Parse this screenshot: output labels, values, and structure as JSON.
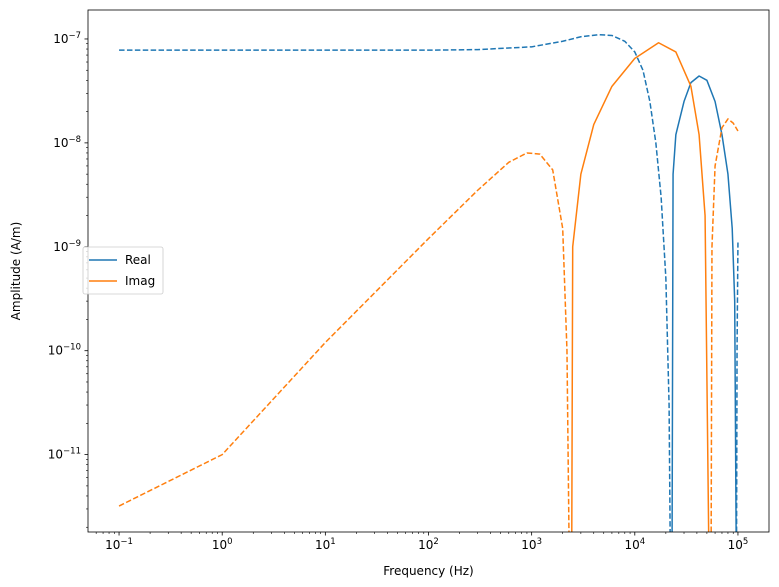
{
  "chart_data": {
    "type": "line",
    "title": "",
    "xlabel": "Frequency (Hz)",
    "ylabel": "Amplitude (A/m)",
    "xscale": "log",
    "yscale": "log",
    "xlim": [
      0.05,
      200000
    ],
    "ylim": [
      1.8e-12,
      1.9e-07
    ],
    "grid": false,
    "legend": {
      "placement": "center-left",
      "entries": [
        {
          "label": "Real",
          "color": "#1f77b4"
        },
        {
          "label": "Imag",
          "color": "#ff7f0e"
        }
      ]
    },
    "x_ticks": [
      {
        "value": 0.1,
        "base": "10",
        "exp": "−1"
      },
      {
        "value": 1,
        "base": "10",
        "exp": "0"
      },
      {
        "value": 10,
        "base": "10",
        "exp": "1"
      },
      {
        "value": 100,
        "base": "10",
        "exp": "2"
      },
      {
        "value": 1000,
        "base": "10",
        "exp": "3"
      },
      {
        "value": 10000,
        "base": "10",
        "exp": "4"
      },
      {
        "value": 100000,
        "base": "10",
        "exp": "5"
      }
    ],
    "y_ticks": [
      {
        "value": 1e-11,
        "base": "10",
        "exp": "−11"
      },
      {
        "value": 1e-10,
        "base": "10",
        "exp": "−10"
      },
      {
        "value": 1e-09,
        "base": "10",
        "exp": "−9"
      },
      {
        "value": 1e-08,
        "base": "10",
        "exp": "−8"
      },
      {
        "value": 1e-07,
        "base": "10",
        "exp": "−7"
      }
    ],
    "series": [
      {
        "name": "Real",
        "color": "#1f77b4",
        "segments": [
          {
            "style": "dashed",
            "points": [
              [
                0.1,
                7.8e-08
              ],
              [
                1,
                7.8e-08
              ],
              [
                10,
                7.8e-08
              ],
              [
                100,
                7.8e-08
              ],
              [
                300,
                7.9e-08
              ],
              [
                1000,
                8.4e-08
              ],
              [
                2000,
                9.5e-08
              ],
              [
                3000,
                1.05e-07
              ],
              [
                4500,
                1.1e-07
              ],
              [
                6000,
                1.08e-07
              ],
              [
                8000,
                9.5e-08
              ],
              [
                10000,
                7.5e-08
              ],
              [
                12000,
                5e-08
              ],
              [
                14000,
                2.5e-08
              ],
              [
                16000,
                1e-08
              ],
              [
                18000,
                3e-09
              ],
              [
                20000,
                5e-10
              ],
              [
                21500,
                3e-11
              ],
              [
                22000,
                1.8e-12
              ]
            ]
          },
          {
            "style": "solid",
            "points": [
              [
                23000,
                1.8e-12
              ],
              [
                23500,
                5e-09
              ],
              [
                25000,
                1.2e-08
              ],
              [
                30000,
                2.5e-08
              ],
              [
                35000,
                3.8e-08
              ],
              [
                42000,
                4.4e-08
              ],
              [
                50000,
                4e-08
              ],
              [
                60000,
                2.5e-08
              ],
              [
                70000,
                1.2e-08
              ],
              [
                80000,
                5e-09
              ],
              [
                88000,
                1.5e-09
              ],
              [
                93000,
                3e-10
              ],
              [
                96000,
                1.8e-12
              ]
            ]
          },
          {
            "style": "dashed",
            "points": [
              [
                97000,
                1.8e-12
              ],
              [
                98000,
                1e-10
              ],
              [
                100000,
                1.1e-09
              ]
            ]
          }
        ]
      },
      {
        "name": "Imag",
        "color": "#ff7f0e",
        "segments": [
          {
            "style": "dashed",
            "points": [
              [
                0.1,
                3.2e-12
              ],
              [
                1,
                1e-11
              ],
              [
                10,
                1.2e-10
              ],
              [
                100,
                1.2e-09
              ],
              [
                300,
                3.5e-09
              ],
              [
                600,
                6.5e-09
              ],
              [
                900,
                8e-09
              ],
              [
                1200,
                7.8e-09
              ],
              [
                1600,
                5.5e-09
              ],
              [
                2000,
                1.5e-09
              ],
              [
                2200,
                1e-10
              ],
              [
                2300,
                1.8e-12
              ]
            ]
          },
          {
            "style": "solid",
            "points": [
              [
                2450,
                1.8e-12
              ],
              [
                2500,
                1e-09
              ],
              [
                3000,
                5e-09
              ],
              [
                4000,
                1.5e-08
              ],
              [
                6000,
                3.5e-08
              ],
              [
                10000,
                6.5e-08
              ],
              [
                17000,
                9.2e-08
              ],
              [
                25000,
                7.5e-08
              ],
              [
                35000,
                3.5e-08
              ],
              [
                42000,
                1.2e-08
              ],
              [
                48000,
                2e-09
              ],
              [
                52000,
                1.8e-12
              ]
            ]
          },
          {
            "style": "dashed",
            "points": [
              [
                55000,
                1.8e-12
              ],
              [
                56000,
                1e-09
              ],
              [
                60000,
                6e-09
              ],
              [
                70000,
                1.4e-08
              ],
              [
                80000,
                1.7e-08
              ],
              [
                90000,
                1.55e-08
              ],
              [
                100000,
                1.3e-08
              ]
            ]
          }
        ]
      }
    ]
  }
}
